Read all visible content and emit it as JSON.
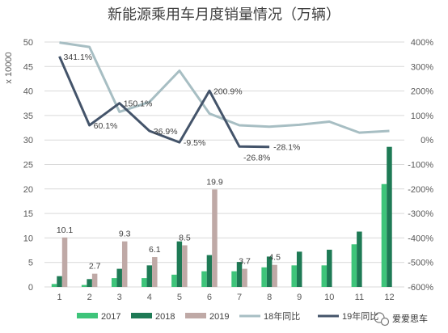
{
  "chart_data": {
    "type": "bar",
    "title": "新能源乘用车月度销量情况（万辆）",
    "ylabel": "x 10000",
    "categories": [
      "1",
      "2",
      "3",
      "4",
      "5",
      "6",
      "7",
      "8",
      "9",
      "10",
      "11",
      "12"
    ],
    "ylim": [
      0,
      50
    ],
    "yticks": [
      "0",
      "5",
      "10",
      "15",
      "20",
      "25",
      "30",
      "35",
      "40",
      "45",
      "50"
    ],
    "y2lim": [
      -600,
      400
    ],
    "y2ticks": [
      "-600%",
      "-500%",
      "-400%",
      "-300%",
      "-200%",
      "-100%",
      "0%",
      "100%",
      "200%",
      "300%",
      "400%"
    ],
    "grid": true,
    "legend_position": "bottom",
    "series": [
      {
        "name": "2017",
        "kind": "bar",
        "color": "#3ec47a",
        "values": [
          0.6,
          0.4,
          1.8,
          1.8,
          2.5,
          3.2,
          3.2,
          4.0,
          4.4,
          4.4,
          8.7,
          21.0
        ]
      },
      {
        "name": "2018",
        "kind": "bar",
        "color": "#1e7a55",
        "values": [
          2.2,
          1.6,
          3.7,
          4.4,
          9.3,
          6.5,
          5.1,
          6.2,
          7.2,
          7.6,
          11.3,
          28.6
        ]
      },
      {
        "name": "2019",
        "kind": "bar",
        "color": "#bfa9a6",
        "values": [
          10.1,
          2.7,
          9.3,
          6.1,
          8.5,
          19.9,
          3.7,
          4.5,
          null,
          null,
          null,
          null
        ],
        "labels": [
          "10.1",
          "2.7",
          "9.3",
          "6.1",
          "8.5",
          "19.9",
          "3.7",
          "4.5",
          "",
          "",
          "",
          ""
        ]
      },
      {
        "name": "18年同比",
        "kind": "line",
        "axis": "right",
        "color": "#a7bec3",
        "values": [
          398,
          380,
          115,
          155,
          283,
          108,
          60,
          54,
          62,
          75,
          30,
          37
        ]
      },
      {
        "name": "19年同比",
        "kind": "line",
        "axis": "right",
        "color": "#44546a",
        "values": [
          341.1,
          60.1,
          150.1,
          36.9,
          -9.5,
          200.9,
          -26.8,
          -28.1,
          null,
          null,
          null,
          null
        ],
        "labels": [
          "341.1%",
          "60.1%",
          "150.1%",
          "36.9%",
          "-9.5%",
          "200.9%",
          "-26.8%",
          "-28.1%",
          "",
          "",
          "",
          ""
        ]
      }
    ]
  },
  "watermark": {
    "text": "爱爱思车",
    "icon": "wechat-icon"
  }
}
